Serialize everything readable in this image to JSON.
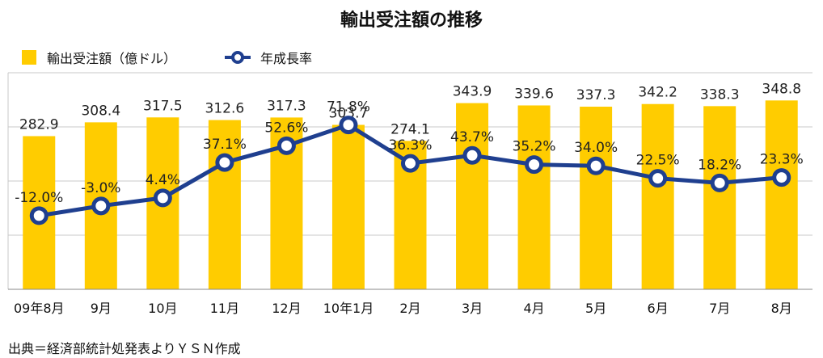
{
  "source_note": "出典＝経済部統計処発表よりＹＳＮ作成",
  "colors": {
    "bar": "#FFCC00",
    "line": "#1F3F8F",
    "grid": "#C8C8C8",
    "axis": "#888888"
  },
  "chart_data": {
    "type": "bar",
    "title": "輸出受注額の推移",
    "legend_position": "top-left",
    "grid": true,
    "categories": [
      "09年8月",
      "9月",
      "10月",
      "11月",
      "12月",
      "10年1月",
      "2月",
      "3月",
      "4月",
      "5月",
      "6月",
      "7月",
      "8月"
    ],
    "series": [
      {
        "name": "輸出受注額（億ドル）",
        "type": "bar",
        "values": [
          282.9,
          308.4,
          317.5,
          312.6,
          317.3,
          303.7,
          274.1,
          343.9,
          339.6,
          337.3,
          342.2,
          338.3,
          348.8
        ]
      },
      {
        "name": "年成長率",
        "type": "line",
        "unit": "%",
        "values": [
          -12.0,
          -3.0,
          4.4,
          37.1,
          52.6,
          71.8,
          36.3,
          43.7,
          35.2,
          34.0,
          22.5,
          18.2,
          23.3
        ],
        "labels": [
          "-12.0%",
          "-3.0%",
          "4.4%",
          "37.1%",
          "52.6%",
          "71.8%",
          "36.3%",
          "43.7%",
          "35.2%",
          "34.0%",
          "22.5%",
          "18.2%",
          "23.3%"
        ]
      }
    ],
    "bar_labels": [
      "282.9",
      "308.4",
      "317.5",
      "312.6",
      "317.3",
      "303.7",
      "274.1",
      "343.9",
      "339.6",
      "337.3",
      "342.2",
      "338.3",
      "348.8"
    ],
    "bar_axis_range": [
      0,
      400
    ],
    "line_axis_range": [
      -80,
      120
    ]
  }
}
